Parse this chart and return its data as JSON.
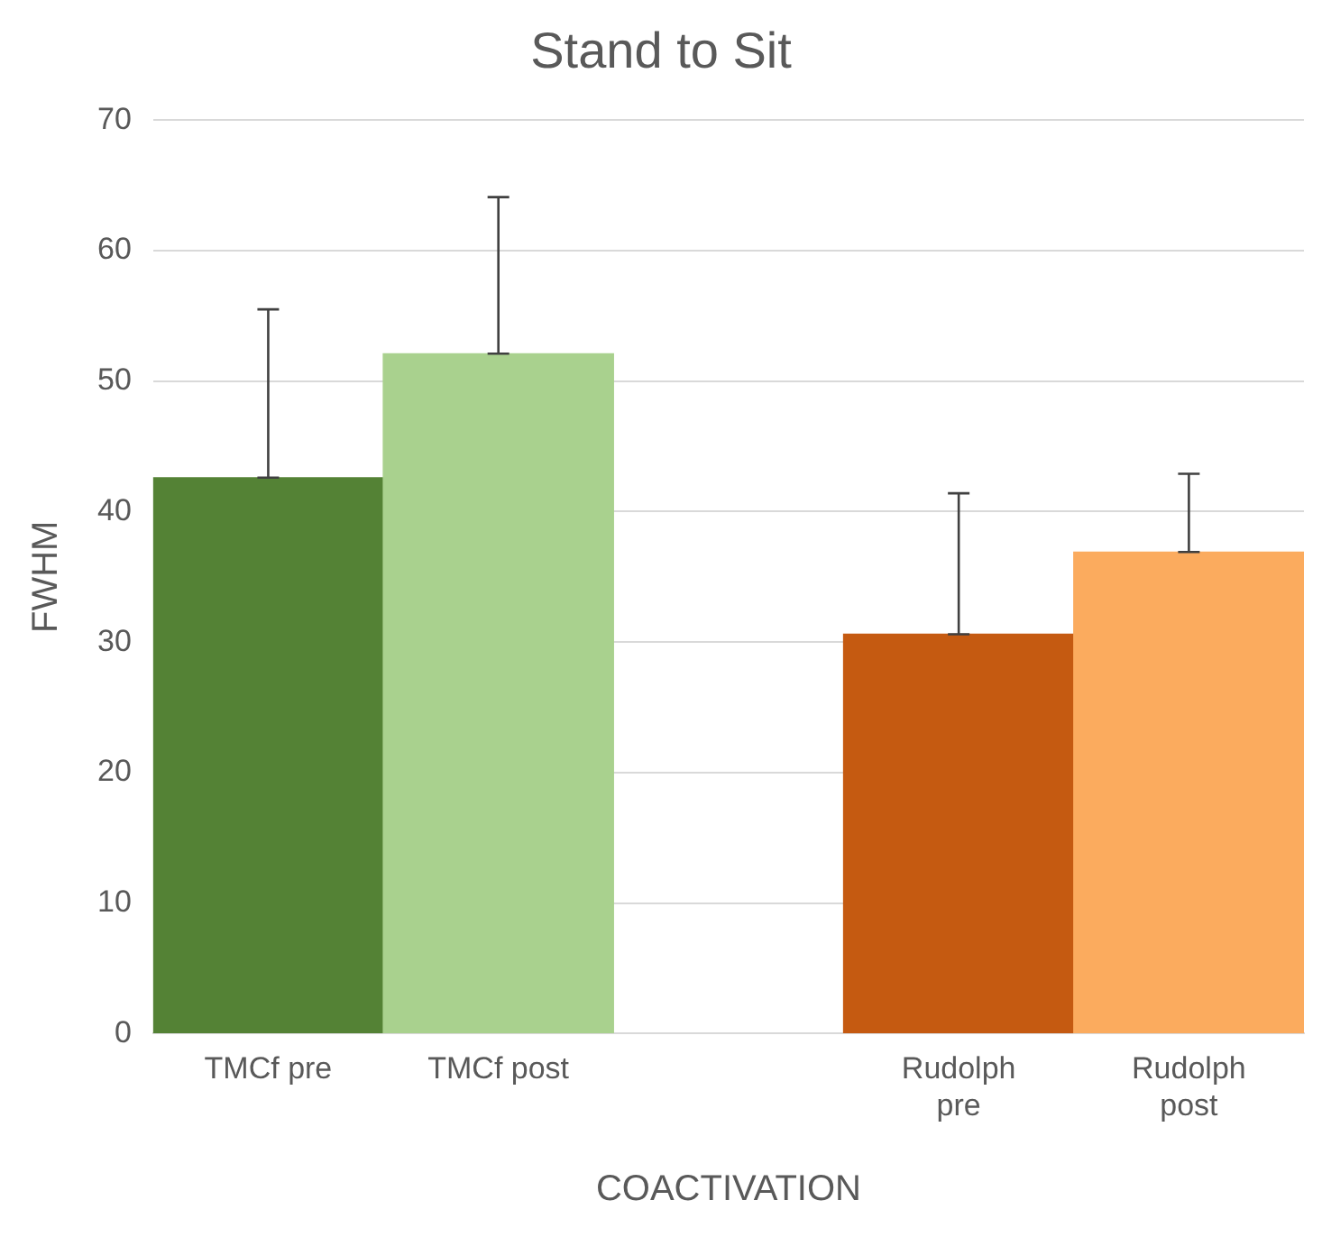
{
  "chart_data": {
    "type": "bar",
    "title": "Stand to Sit",
    "xlabel": "COACTIVATION",
    "ylabel": "FWHM",
    "categories": [
      "TMCf pre",
      "TMCf post",
      null,
      "Rudolph pre",
      "Rudolph post"
    ],
    "values": [
      42.6,
      52.1,
      null,
      30.6,
      36.9
    ],
    "colors": [
      "#548235",
      "#a9d18e",
      "#ffffff",
      "#c55a11",
      "#fbab5e"
    ],
    "errors": [
      [
        42.6,
        55.5
      ],
      [
        52.1,
        64.1
      ],
      null,
      [
        30.6,
        41.4
      ],
      [
        36.9,
        42.9
      ]
    ],
    "ylim": [
      0,
      70
    ],
    "yticks": [
      0,
      10,
      20,
      30,
      40,
      50,
      60,
      70
    ],
    "grid": "y",
    "legend": false
  }
}
